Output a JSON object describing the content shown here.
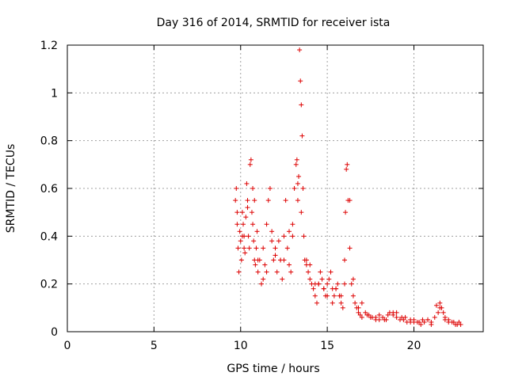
{
  "chart_data": {
    "type": "scatter",
    "title": "Day 316 of 2014, SRMTID for receiver ista",
    "xlabel": "GPS time / hours",
    "ylabel": "SRMTID / TECUs",
    "xlim": [
      0,
      24
    ],
    "ylim": [
      0,
      1.2
    ],
    "x_ticks": [
      0,
      5,
      10,
      15,
      20
    ],
    "x_tick_labels": [
      "0",
      "5",
      "10",
      "15",
      "20"
    ],
    "y_ticks": [
      0,
      0.2,
      0.4,
      0.6,
      0.8,
      1.0,
      1.2
    ],
    "y_tick_labels": [
      "0",
      "0.2",
      "0.4",
      "0.6",
      "0.8",
      "1",
      "1.2"
    ],
    "grid": true,
    "marker": "+",
    "colors": {
      "series": "#dd0000",
      "grid": "#a0a0a0",
      "axis": "#000000"
    },
    "series": [
      {
        "name": "SRMTID",
        "x": [
          9.7,
          9.75,
          9.8,
          9.85,
          9.9,
          9.95,
          10.0,
          10.05,
          10.1,
          10.15,
          10.2,
          10.25,
          10.3,
          10.35,
          10.4,
          10.45,
          10.5,
          10.55,
          10.6,
          10.65,
          10.7,
          10.75,
          10.8,
          10.85,
          10.9,
          10.95,
          11.0,
          11.1,
          11.2,
          11.3,
          11.4,
          11.5,
          11.6,
          11.7,
          11.8,
          11.9,
          12.0,
          12.1,
          12.2,
          12.3,
          12.4,
          12.5,
          12.6,
          12.7,
          12.8,
          12.9,
          13.0,
          13.1,
          13.2,
          13.25,
          13.3,
          13.35,
          13.4,
          13.45,
          13.5,
          13.55,
          13.6,
          13.65,
          13.7,
          13.8,
          13.9,
          14.0,
          14.1,
          14.2,
          14.3,
          14.4,
          14.5,
          14.6,
          14.7,
          14.8,
          14.9,
          15.0,
          15.1,
          15.2,
          15.3,
          15.4,
          15.5,
          15.6,
          15.7,
          15.8,
          15.9,
          16.0,
          16.05,
          16.1,
          16.15,
          16.2,
          16.3,
          16.4,
          16.5,
          16.6,
          16.7,
          16.8,
          16.9,
          17.0,
          17.2,
          17.4,
          17.6,
          17.8,
          18.0,
          18.2,
          18.4,
          18.6,
          18.8,
          19.0,
          19.2,
          19.4,
          19.6,
          19.8,
          20.0,
          20.2,
          20.4,
          20.6,
          20.8,
          21.0,
          21.2,
          21.4,
          21.5,
          21.6,
          21.7,
          21.8,
          22.0,
          22.2,
          22.4,
          22.6,
          22.7,
          9.8,
          10.1,
          10.4,
          10.7,
          11.0,
          11.5,
          12.0,
          12.5,
          13.0,
          13.5,
          14.0,
          14.5,
          15.0,
          15.5,
          16.0,
          16.5,
          17.0,
          17.5,
          18.0,
          18.5,
          19.0,
          19.5,
          20.0,
          20.5,
          21.0,
          21.5,
          22.0,
          22.5,
          10.2,
          10.8,
          11.3,
          11.8,
          12.3,
          12.8,
          13.3,
          13.8,
          14.3,
          14.8,
          15.3,
          15.8,
          16.3,
          16.8,
          17.3,
          17.8,
          18.3,
          18.8,
          19.3,
          19.8,
          20.3,
          20.8,
          21.3,
          21.8,
          22.3
        ],
        "y": [
          0.55,
          0.6,
          0.5,
          0.35,
          0.25,
          0.42,
          0.38,
          0.3,
          0.5,
          0.45,
          0.4,
          0.33,
          0.48,
          0.62,
          0.55,
          0.4,
          0.35,
          0.7,
          0.72,
          0.5,
          0.45,
          0.38,
          0.3,
          0.28,
          0.35,
          0.42,
          0.25,
          0.3,
          0.2,
          0.35,
          0.28,
          0.45,
          0.55,
          0.6,
          0.42,
          0.3,
          0.32,
          0.25,
          0.38,
          0.3,
          0.22,
          0.4,
          0.55,
          0.35,
          0.28,
          0.25,
          0.45,
          0.6,
          0.7,
          0.72,
          0.55,
          0.65,
          1.18,
          1.05,
          0.95,
          0.82,
          0.6,
          0.4,
          0.3,
          0.28,
          0.25,
          0.22,
          0.2,
          0.18,
          0.15,
          0.12,
          0.2,
          0.25,
          0.22,
          0.18,
          0.15,
          0.2,
          0.22,
          0.25,
          0.18,
          0.15,
          0.18,
          0.2,
          0.15,
          0.12,
          0.1,
          0.3,
          0.5,
          0.68,
          0.7,
          0.55,
          0.35,
          0.2,
          0.15,
          0.12,
          0.1,
          0.08,
          0.07,
          0.06,
          0.08,
          0.07,
          0.06,
          0.05,
          0.07,
          0.06,
          0.05,
          0.08,
          0.07,
          0.06,
          0.05,
          0.05,
          0.04,
          0.04,
          0.05,
          0.04,
          0.03,
          0.04,
          0.05,
          0.04,
          0.06,
          0.08,
          0.12,
          0.1,
          0.08,
          0.06,
          0.05,
          0.04,
          0.03,
          0.04,
          0.03,
          0.45,
          0.4,
          0.52,
          0.6,
          0.3,
          0.25,
          0.35,
          0.3,
          0.4,
          0.5,
          0.28,
          0.2,
          0.15,
          0.18,
          0.2,
          0.22,
          0.12,
          0.06,
          0.05,
          0.07,
          0.08,
          0.06,
          0.04,
          0.05,
          0.03,
          0.1,
          0.04,
          0.03,
          0.35,
          0.55,
          0.22,
          0.38,
          0.3,
          0.42,
          0.62,
          0.3,
          0.2,
          0.18,
          0.12,
          0.15,
          0.55,
          0.1,
          0.07,
          0.06,
          0.05,
          0.08,
          0.06,
          0.05,
          0.04,
          0.05,
          0.11,
          0.05,
          0.04
        ]
      }
    ]
  }
}
